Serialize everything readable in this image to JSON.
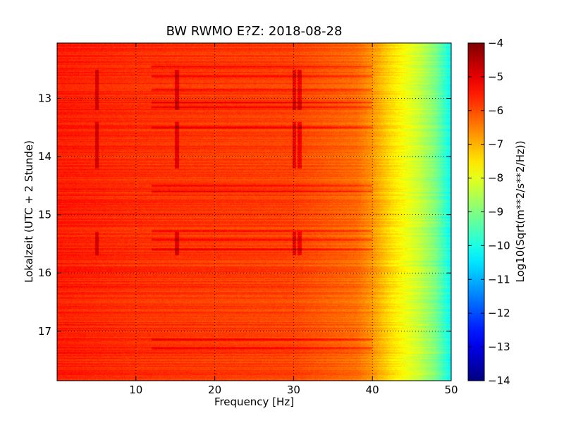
{
  "chart_data": {
    "type": "heatmap",
    "title": "BW RWMO E?Z: 2018-08-28",
    "xlabel": "Frequency [Hz]",
    "ylabel": "Lokalzeit (UTC + 2 Stunde)",
    "colorbar_label": "Log10(Sqrt(m**2/s**2/Hz))",
    "colormap": "jet",
    "xlim": [
      0,
      50
    ],
    "ylim": [
      17.85,
      12.05
    ],
    "clim": [
      -14,
      -4
    ],
    "x_ticks": [
      10,
      20,
      30,
      40,
      50
    ],
    "x_tick_labels": [
      "10",
      "20",
      "30",
      "40",
      "50"
    ],
    "y_ticks": [
      13,
      14,
      15,
      16,
      17
    ],
    "y_tick_labels": [
      "13",
      "14",
      "15",
      "16",
      "17"
    ],
    "colorbar_ticks": [
      -4,
      -5,
      -6,
      -7,
      -8,
      -9,
      -10,
      -11,
      -12,
      -13,
      -14
    ],
    "colorbar_tick_labels": [
      "−4",
      "−5",
      "−6",
      "−7",
      "−8",
      "−9",
      "−10",
      "−11",
      "−12",
      "−13",
      "−14"
    ],
    "grid": true,
    "spectrum_profile": {
      "frequency": [
        0,
        5,
        10,
        20,
        30,
        38,
        40,
        42,
        44,
        46,
        48,
        49,
        50
      ],
      "level": [
        -5.5,
        -5.6,
        -5.7,
        -5.8,
        -5.9,
        -6.3,
        -6.7,
        -7.3,
        -7.8,
        -8.3,
        -9.0,
        -9.6,
        -10.2
      ]
    },
    "strong_time_bands": [
      12.45,
      12.62,
      12.85,
      13.07,
      13.15,
      13.5,
      14.5,
      14.6,
      15.28,
      15.43,
      15.6,
      17.15,
      17.3
    ],
    "vertical_features_hz": [
      5,
      15.2,
      30.1,
      30.8
    ]
  }
}
